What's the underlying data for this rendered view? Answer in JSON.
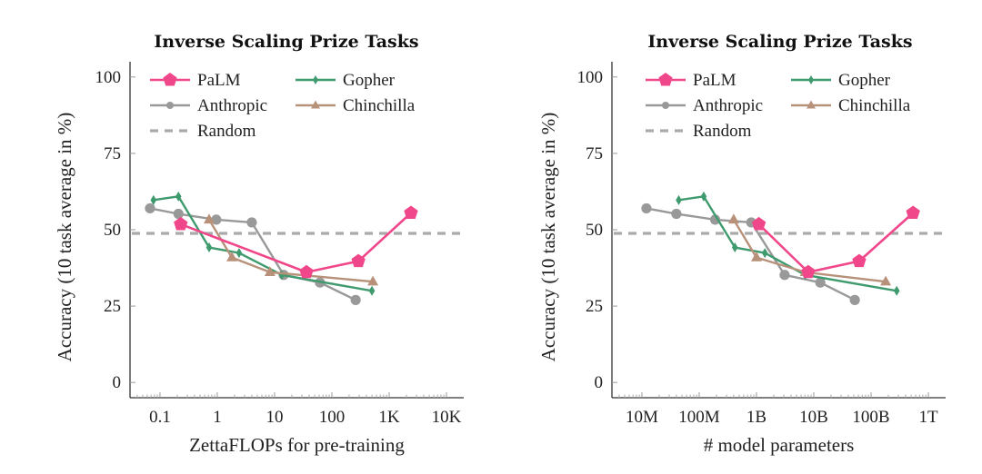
{
  "chart_data": [
    {
      "type": "line",
      "title": "Inverse Scaling Prize Tasks",
      "xlabel": "ZettaFLOPs for pre-training",
      "ylabel": "Accuracy (10 task average in %)",
      "xscale": "log",
      "xlim": [
        0.03,
        20000
      ],
      "ylim": [
        -5,
        105
      ],
      "xticks": [
        0.1,
        1,
        10,
        100,
        1000,
        10000
      ],
      "xtick_labels": [
        "0.1",
        "1",
        "10",
        "100",
        "1K",
        "10K"
      ],
      "yticks": [
        0,
        25,
        50,
        75,
        100
      ],
      "ytick_labels": [
        "0",
        "25",
        "50",
        "75",
        "100"
      ],
      "legend_position": "top",
      "random_baseline": 48.8,
      "series": [
        {
          "name": "PaLM",
          "color": "#f0468a",
          "marker": "pentagon",
          "x": [
            0.23,
            36,
            290,
            2400
          ],
          "y": [
            51.8,
            36.1,
            39.7,
            55.5
          ]
        },
        {
          "name": "Gopher",
          "color": "#3f9a6e",
          "marker": "diamond",
          "x": [
            0.077,
            0.21,
            0.72,
            2.4,
            13.4,
            500
          ],
          "y": [
            59.7,
            60.9,
            44.2,
            42.4,
            35.2,
            30.0
          ]
        },
        {
          "name": "Anthropic",
          "color": "#999999",
          "marker": "circle",
          "x": [
            0.067,
            0.21,
            0.96,
            4.0,
            14.4,
            62,
            260
          ],
          "y": [
            57.0,
            55.2,
            53.3,
            52.4,
            35.2,
            32.7,
            27.0
          ]
        },
        {
          "name": "Chinchilla",
          "color": "#b8917a",
          "marker": "triangle",
          "x": [
            0.72,
            1.8,
            8.3,
            520
          ],
          "y": [
            53.3,
            40.9,
            36.1,
            33.0
          ]
        }
      ]
    },
    {
      "type": "line",
      "title": "Inverse Scaling Prize Tasks",
      "xlabel": "# model parameters",
      "ylabel": "Accuracy (10 task average in %)",
      "xscale": "log",
      "xlim": [
        3000000,
        2000000000000
      ],
      "ylim": [
        -5,
        105
      ],
      "xticks": [
        10000000,
        100000000,
        1000000000,
        10000000000,
        100000000000,
        1000000000000
      ],
      "xtick_labels": [
        "10M",
        "100M",
        "1B",
        "10B",
        "100B",
        "1T"
      ],
      "yticks": [
        0,
        25,
        50,
        75,
        100
      ],
      "ytick_labels": [
        "0",
        "25",
        "50",
        "75",
        "100"
      ],
      "legend_position": "top",
      "random_baseline": 48.8,
      "series": [
        {
          "name": "PaLM",
          "color": "#f0468a",
          "marker": "pentagon",
          "x": [
            1100000000,
            8000000000,
            62000000000,
            540000000000
          ],
          "y": [
            51.8,
            36.1,
            39.7,
            55.5
          ]
        },
        {
          "name": "Gopher",
          "color": "#3f9a6e",
          "marker": "diamond",
          "x": [
            44000000,
            120000000,
            420000000,
            1400000000,
            7100000000,
            280000000000
          ],
          "y": [
            59.7,
            60.9,
            44.2,
            42.4,
            35.2,
            30.0
          ]
        },
        {
          "name": "Anthropic",
          "color": "#999999",
          "marker": "circle",
          "x": [
            12000000,
            40000000,
            190000000,
            810000000,
            3100000000,
            13000000000,
            52000000000
          ],
          "y": [
            57.0,
            55.2,
            53.3,
            52.4,
            35.2,
            32.7,
            27.0
          ]
        },
        {
          "name": "Chinchilla",
          "color": "#b8917a",
          "marker": "triangle",
          "x": [
            400000000,
            1000000000,
            7100000000,
            180000000000
          ],
          "y": [
            53.3,
            40.9,
            36.1,
            33.0
          ]
        }
      ]
    }
  ],
  "legend": {
    "items": [
      "PaLM",
      "Gopher",
      "Anthropic",
      "Chinchilla",
      "Random"
    ]
  }
}
